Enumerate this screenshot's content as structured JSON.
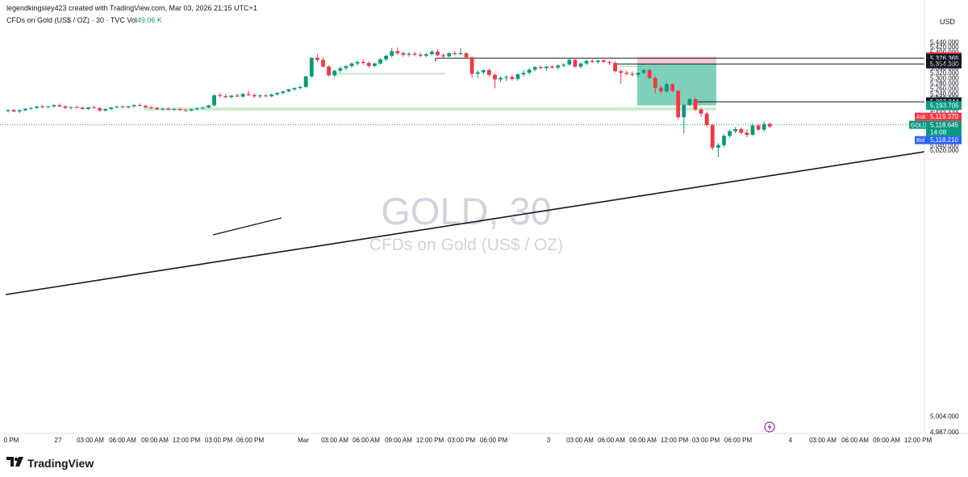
{
  "header": {
    "credit": "legendkingsley423 created with TradingView.com, Mar 03, 2026 21:15 UTC+1",
    "symbol": "CFDs on Gold (US$ / OZ) · 30 · TVC",
    "volume_label": "Vol",
    "volume_value": "49.06 K",
    "currency": "USD"
  },
  "watermark": {
    "symbol": "GOLD, 30",
    "description": "CFDs on Gold (US$ / OZ)"
  },
  "footer": {
    "brand": "TradingView"
  },
  "colors": {
    "up": "#089981",
    "down": "#f23645",
    "zone_green": "#b5e3b9",
    "stop_zone": "#f7b7bf",
    "target_zone": "#3ab795",
    "bid": "#2962ff"
  },
  "chart_data": {
    "type": "candlestick",
    "ylim": [
      4980,
      5460
    ],
    "y_ticks": [
      5440,
      5420,
      5400,
      5380,
      5360,
      5340,
      5320,
      5300,
      5280,
      5260,
      5240,
      5220,
      5200,
      5180,
      5160,
      5140,
      5120,
      5100,
      5080,
      5060,
      5040,
      5020,
      5004,
      4987
    ],
    "y_tick_labels": [
      "5,440.000",
      "5,420.000",
      "5,400.000",
      "5,380.000",
      "5,360.000",
      "5,340.000",
      "5,320.000",
      "5,300.000",
      "5,280.000",
      "5,260.000",
      "5,240.000",
      "5,220.000",
      "5,200.000",
      "5,180.000",
      "5,160.000",
      "5,140.000",
      "5,120.000",
      "5,100.000",
      "5,080.000",
      "5,060.000",
      "5,040.000",
      "5,020.000",
      "5,004.000",
      "4,987.000"
    ],
    "x_labels": [
      "0 PM",
      "27",
      "03:00 AM",
      "06:00 AM",
      "09:00 AM",
      "12:00 PM",
      "03:00 PM",
      "06:00 PM",
      "Mar",
      "03:00 AM",
      "06:00 AM",
      "09:00 AM",
      "12:00 PM",
      "03:00 PM",
      "06:00 PM",
      "3",
      "03:00 AM",
      "06:00 AM",
      "09:00 AM",
      "12:00 PM",
      "03:00 PM",
      "06:00 PM",
      "4",
      "03:00 AM",
      "06:00 AM",
      "09:00 AM",
      "12:00 PM"
    ],
    "price_levels": [
      {
        "name": "stop",
        "value": 5382.375,
        "label": "5,382.375"
      },
      {
        "name": "swing-high",
        "value": 5376.365,
        "label": "5,376.365"
      },
      {
        "name": "entry",
        "value": 5354.38,
        "label": "5,354.380"
      },
      {
        "name": "mid",
        "value": 5354.858,
        "label": "5,354.858"
      },
      {
        "name": "level",
        "value": 5207.844,
        "label": "5,207.844"
      },
      {
        "name": "target",
        "value": 5193.705,
        "label": "5,193.705"
      }
    ],
    "quote": {
      "ask_label": "Ask",
      "ask": "5,119.370",
      "symbol": "GOLD",
      "last": "5,118.645",
      "countdown": "14:08",
      "bid_label": "Bid",
      "bid": "5,118.210",
      "last_value": 5118.645
    },
    "candles": [
      [
        5172,
        5178,
        5166,
        5176
      ],
      [
        5176,
        5180,
        5168,
        5170
      ],
      [
        5170,
        5178,
        5164,
        5175
      ],
      [
        5175,
        5184,
        5171,
        5181
      ],
      [
        5181,
        5187,
        5176,
        5184
      ],
      [
        5184,
        5192,
        5180,
        5189
      ],
      [
        5189,
        5196,
        5184,
        5187
      ],
      [
        5187,
        5192,
        5182,
        5190
      ],
      [
        5190,
        5198,
        5186,
        5195
      ],
      [
        5195,
        5201,
        5188,
        5190
      ],
      [
        5190,
        5194,
        5180,
        5184
      ],
      [
        5184,
        5190,
        5178,
        5187
      ],
      [
        5187,
        5193,
        5182,
        5185
      ],
      [
        5185,
        5189,
        5176,
        5180
      ],
      [
        5180,
        5188,
        5176,
        5186
      ],
      [
        5186,
        5193,
        5181,
        5183
      ],
      [
        5183,
        5187,
        5170,
        5174
      ],
      [
        5174,
        5182,
        5170,
        5180
      ],
      [
        5180,
        5188,
        5176,
        5186
      ],
      [
        5186,
        5193,
        5182,
        5189
      ],
      [
        5189,
        5194,
        5183,
        5186
      ],
      [
        5186,
        5192,
        5181,
        5190
      ],
      [
        5190,
        5198,
        5186,
        5195
      ],
      [
        5195,
        5201,
        5190,
        5192
      ],
      [
        5192,
        5196,
        5184,
        5186
      ],
      [
        5186,
        5191,
        5180,
        5184
      ],
      [
        5184,
        5188,
        5176,
        5179
      ],
      [
        5179,
        5184,
        5173,
        5181
      ],
      [
        5181,
        5185,
        5175,
        5177
      ],
      [
        5177,
        5183,
        5173,
        5180
      ],
      [
        5180,
        5184,
        5174,
        5176
      ],
      [
        5176,
        5180,
        5168,
        5174
      ],
      [
        5174,
        5182,
        5170,
        5179
      ],
      [
        5179,
        5186,
        5175,
        5182
      ],
      [
        5182,
        5188,
        5178,
        5186
      ],
      [
        5186,
        5196,
        5182,
        5194
      ],
      [
        5194,
        5236,
        5190,
        5233
      ],
      [
        5233,
        5243,
        5224,
        5230
      ],
      [
        5230,
        5238,
        5221,
        5226
      ],
      [
        5226,
        5234,
        5220,
        5232
      ],
      [
        5232,
        5240,
        5226,
        5228
      ],
      [
        5228,
        5243,
        5224,
        5238
      ],
      [
        5238,
        5250,
        5230,
        5234
      ],
      [
        5234,
        5240,
        5224,
        5229
      ],
      [
        5229,
        5237,
        5222,
        5232
      ],
      [
        5232,
        5238,
        5226,
        5229
      ],
      [
        5229,
        5239,
        5225,
        5236
      ],
      [
        5236,
        5244,
        5232,
        5242
      ],
      [
        5242,
        5250,
        5236,
        5248
      ],
      [
        5248,
        5258,
        5244,
        5256
      ],
      [
        5256,
        5264,
        5250,
        5261
      ],
      [
        5261,
        5270,
        5256,
        5265
      ],
      [
        5265,
        5310,
        5262,
        5306
      ],
      [
        5306,
        5380,
        5302,
        5378
      ],
      [
        5378,
        5392,
        5362,
        5370
      ],
      [
        5370,
        5380,
        5340,
        5344
      ],
      [
        5344,
        5350,
        5306,
        5310
      ],
      [
        5310,
        5332,
        5304,
        5328
      ],
      [
        5328,
        5344,
        5320,
        5338
      ],
      [
        5338,
        5350,
        5330,
        5346
      ],
      [
        5346,
        5360,
        5340,
        5356
      ],
      [
        5356,
        5368,
        5348,
        5362
      ],
      [
        5362,
        5372,
        5352,
        5358
      ],
      [
        5358,
        5364,
        5340,
        5346
      ],
      [
        5346,
        5360,
        5342,
        5356
      ],
      [
        5356,
        5376,
        5352,
        5372
      ],
      [
        5372,
        5390,
        5366,
        5386
      ],
      [
        5386,
        5416,
        5380,
        5404
      ],
      [
        5404,
        5418,
        5390,
        5396
      ],
      [
        5396,
        5404,
        5382,
        5390
      ],
      [
        5390,
        5400,
        5382,
        5394
      ],
      [
        5394,
        5402,
        5384,
        5390
      ],
      [
        5390,
        5398,
        5380,
        5386
      ],
      [
        5386,
        5396,
        5380,
        5392
      ],
      [
        5392,
        5408,
        5388,
        5402
      ],
      [
        5402,
        5410,
        5384,
        5388
      ],
      [
        5388,
        5396,
        5378,
        5384
      ],
      [
        5384,
        5400,
        5380,
        5396
      ],
      [
        5396,
        5404,
        5388,
        5392
      ],
      [
        5392,
        5416,
        5388,
        5396
      ],
      [
        5396,
        5400,
        5378,
        5380
      ],
      [
        5380,
        5384,
        5300,
        5316
      ],
      [
        5316,
        5330,
        5300,
        5322
      ],
      [
        5322,
        5334,
        5314,
        5330
      ],
      [
        5330,
        5336,
        5304,
        5312
      ],
      [
        5312,
        5318,
        5260,
        5294
      ],
      [
        5294,
        5306,
        5284,
        5300
      ],
      [
        5300,
        5310,
        5288,
        5304
      ],
      [
        5304,
        5312,
        5290,
        5296
      ],
      [
        5296,
        5318,
        5290,
        5314
      ],
      [
        5314,
        5330,
        5306,
        5320
      ],
      [
        5320,
        5338,
        5312,
        5332
      ],
      [
        5332,
        5346,
        5326,
        5342
      ],
      [
        5342,
        5348,
        5334,
        5338
      ],
      [
        5338,
        5346,
        5328,
        5344
      ],
      [
        5344,
        5350,
        5336,
        5340
      ],
      [
        5340,
        5352,
        5332,
        5348
      ],
      [
        5348,
        5358,
        5342,
        5352
      ],
      [
        5352,
        5376,
        5348,
        5370
      ],
      [
        5370,
        5376,
        5340,
        5344
      ],
      [
        5344,
        5360,
        5338,
        5356
      ],
      [
        5356,
        5372,
        5350,
        5366
      ],
      [
        5366,
        5372,
        5358,
        5362
      ],
      [
        5362,
        5370,
        5354,
        5368
      ],
      [
        5368,
        5372,
        5358,
        5362
      ],
      [
        5362,
        5368,
        5350,
        5358
      ],
      [
        5358,
        5364,
        5322,
        5326
      ],
      [
        5326,
        5332,
        5278,
        5320
      ],
      [
        5320,
        5330,
        5310,
        5316
      ],
      [
        5316,
        5326,
        5306,
        5312
      ],
      [
        5312,
        5322,
        5302,
        5320
      ],
      [
        5320,
        5336,
        5314,
        5330
      ],
      [
        5330,
        5336,
        5296,
        5300
      ],
      [
        5300,
        5306,
        5240,
        5262
      ],
      [
        5262,
        5270,
        5240,
        5248
      ],
      [
        5248,
        5282,
        5244,
        5276
      ],
      [
        5276,
        5280,
        5244,
        5250
      ],
      [
        5250,
        5254,
        5140,
        5148
      ],
      [
        5148,
        5200,
        5086,
        5196
      ],
      [
        5196,
        5222,
        5190,
        5218
      ],
      [
        5218,
        5224,
        5172,
        5178
      ],
      [
        5178,
        5184,
        5150,
        5162
      ],
      [
        5162,
        5170,
        5110,
        5118
      ],
      [
        5118,
        5122,
        5020,
        5030
      ],
      [
        5030,
        5048,
        4993,
        5040
      ],
      [
        5040,
        5082,
        5032,
        5076
      ],
      [
        5076,
        5100,
        5070,
        5094
      ],
      [
        5094,
        5110,
        5086,
        5102
      ],
      [
        5102,
        5108,
        5082,
        5088
      ],
      [
        5088,
        5100,
        5070,
        5080
      ],
      [
        5080,
        5124,
        5076,
        5116
      ],
      [
        5116,
        5124,
        5096,
        5100
      ],
      [
        5100,
        5132,
        5092,
        5122
      ],
      [
        5122,
        5128,
        5106,
        5112
      ]
    ],
    "zones": [
      {
        "name": "demand-zone-left",
        "from": 5174,
        "to": 5186
      },
      {
        "name": "gap-zone-upper",
        "from": 5313,
        "to": 5320
      },
      {
        "name": "entry-marker-zone",
        "from": 5342,
        "to": 5348
      },
      {
        "name": "stop-loss-zone",
        "from": 5354.38,
        "to": 5382.375
      },
      {
        "name": "take-profit-zone",
        "from": 5193.705,
        "to": 5354.38
      }
    ]
  }
}
